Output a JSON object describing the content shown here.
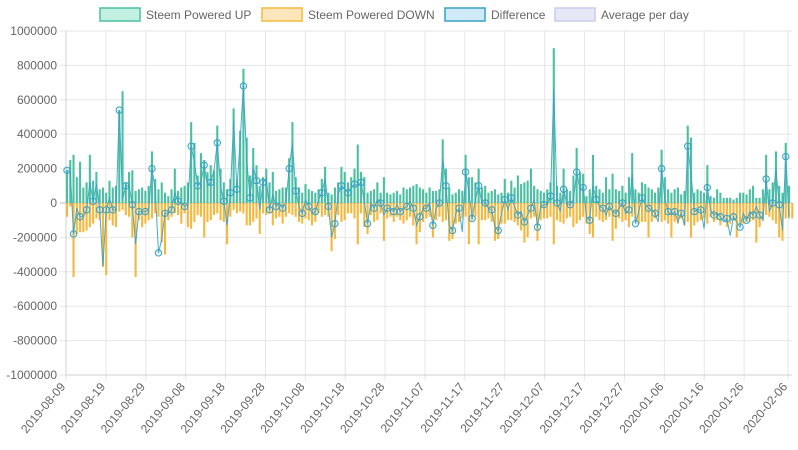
{
  "chart_data": {
    "type": "bar",
    "legend_position": "top",
    "grid": true,
    "ylim": [
      -1000000,
      1000000
    ],
    "y_ticks": [
      1000000,
      800000,
      600000,
      400000,
      200000,
      0,
      -200000,
      -400000,
      -600000,
      -800000,
      -1000000
    ],
    "x_range": [
      "2019-08-09",
      "2020-02-07"
    ],
    "x_ticks": [
      "2019-08-09",
      "2019-08-19",
      "2019-08-29",
      "2019-09-08",
      "2019-09-18",
      "2019-09-28",
      "2019-10-08",
      "2019-10-18",
      "2019-10-28",
      "2019-11-07",
      "2019-11-17",
      "2019-11-27",
      "2019-12-07",
      "2019-12-17",
      "2019-12-27",
      "2020-01-06",
      "2020-01-16",
      "2020-01-26",
      "2020-02-06"
    ],
    "series": [
      {
        "name": "Steem Powered UP",
        "kind": "bar",
        "color": "#4bc0a0",
        "fill": "#c4f0e2",
        "values": [
          190000,
          250000,
          280000,
          150000,
          240000,
          90000,
          120000,
          280000,
          130000,
          180000,
          80000,
          90000,
          60000,
          130000,
          90000,
          100000,
          540000,
          650000,
          120000,
          180000,
          190000,
          70000,
          80000,
          90000,
          70000,
          100000,
          300000,
          140000,
          80000,
          120000,
          60000,
          40000,
          80000,
          200000,
          70000,
          90000,
          100000,
          120000,
          470000,
          350000,
          160000,
          290000,
          250000,
          180000,
          220000,
          190000,
          450000,
          200000,
          120000,
          80000,
          140000,
          550000,
          120000,
          420000,
          780000,
          380000,
          160000,
          320000,
          220000,
          100000,
          150000,
          200000,
          120000,
          180000,
          70000,
          80000,
          90000,
          90000,
          260000,
          470000,
          150000,
          90000,
          60000,
          110000,
          80000,
          70000,
          60000,
          80000,
          140000,
          210000,
          60000,
          50000,
          90000,
          120000,
          210000,
          180000,
          120000,
          150000,
          200000,
          340000,
          180000,
          150000,
          60000,
          70000,
          80000,
          120000,
          60000,
          150000,
          60000,
          50000,
          60000,
          70000,
          50000,
          90000,
          80000,
          90000,
          100000,
          110000,
          90000,
          80000,
          60000,
          90000,
          70000,
          70000,
          80000,
          370000,
          200000,
          90000,
          50000,
          60000,
          80000,
          70000,
          280000,
          150000,
          150000,
          120000,
          200000,
          90000,
          100000,
          60000,
          70000,
          80000,
          50000,
          60000,
          140000,
          60000,
          130000,
          90000,
          160000,
          110000,
          120000,
          130000,
          200000,
          100000,
          80000,
          70000,
          60000,
          80000,
          120000,
          900000,
          100000,
          60000,
          200000,
          80000,
          70000,
          160000,
          320000,
          180000,
          170000,
          40000,
          80000,
          280000,
          100000,
          80000,
          60000,
          150000,
          80000,
          170000,
          80000,
          70000,
          100000,
          60000,
          150000,
          290000,
          80000,
          60000,
          120000,
          110000,
          90000,
          80000,
          60000,
          90000,
          310000,
          150000,
          80000,
          60000,
          80000,
          90000,
          50000,
          70000,
          450000,
          380000,
          60000,
          80000,
          70000,
          60000,
          220000,
          40000,
          30000,
          80000,
          60000,
          30000,
          30000,
          30000,
          20000,
          30000,
          60000,
          60000,
          50000,
          80000,
          100000,
          30000,
          30000,
          80000,
          280000,
          80000,
          120000,
          300000,
          100000,
          60000,
          350000,
          100000
        ]
      },
      {
        "name": "Steem Powered DOWN",
        "kind": "bar",
        "color": "#f6b83c",
        "fill": "#fde6bb",
        "values": [
          -80000,
          -20000,
          -430000,
          -180000,
          -170000,
          -170000,
          -160000,
          -140000,
          -120000,
          -90000,
          -100000,
          -370000,
          -420000,
          -100000,
          -130000,
          -140000,
          -50000,
          -40000,
          -70000,
          -80000,
          -200000,
          -430000,
          -100000,
          -140000,
          -120000,
          -100000,
          -90000,
          -60000,
          -80000,
          -230000,
          -300000,
          -100000,
          -80000,
          -60000,
          -70000,
          -120000,
          -60000,
          -140000,
          -150000,
          -110000,
          -70000,
          -80000,
          -200000,
          -110000,
          -100000,
          -70000,
          -60000,
          -100000,
          -110000,
          -240000,
          -80000,
          -40000,
          -60000,
          -50000,
          -60000,
          -130000,
          -130000,
          -110000,
          -90000,
          -180000,
          -60000,
          -70000,
          -60000,
          -130000,
          -90000,
          -80000,
          -120000,
          -80000,
          -60000,
          -70000,
          -80000,
          -110000,
          -120000,
          -90000,
          -100000,
          -130000,
          -110000,
          -60000,
          -80000,
          -70000,
          -80000,
          -280000,
          -210000,
          -70000,
          -110000,
          -100000,
          -60000,
          -60000,
          -90000,
          -240000,
          -60000,
          -140000,
          -180000,
          -70000,
          -110000,
          -100000,
          -60000,
          -220000,
          -90000,
          -80000,
          -110000,
          -80000,
          -100000,
          -120000,
          -100000,
          -80000,
          -130000,
          -240000,
          -170000,
          -110000,
          -90000,
          -80000,
          -200000,
          -100000,
          -80000,
          -110000,
          -100000,
          -220000,
          -210000,
          -120000,
          -110000,
          -90000,
          -80000,
          -240000,
          -100000,
          -80000,
          -240000,
          -100000,
          -100000,
          -90000,
          -110000,
          -220000,
          -210000,
          -120000,
          -120000,
          -100000,
          -100000,
          -110000,
          -130000,
          -160000,
          -230000,
          -200000,
          -90000,
          -80000,
          -220000,
          -100000,
          -90000,
          -90000,
          -80000,
          -240000,
          -100000,
          -110000,
          -120000,
          -90000,
          -80000,
          -140000,
          -120000,
          -100000,
          -80000,
          -120000,
          -180000,
          -200000,
          -80000,
          -100000,
          -110000,
          -100000,
          -80000,
          -220000,
          -150000,
          -90000,
          -110000,
          -100000,
          -140000,
          -80000,
          -100000,
          -120000,
          -110000,
          -110000,
          -200000,
          -110000,
          -90000,
          -80000,
          -110000,
          -100000,
          -120000,
          -200000,
          -110000,
          -120000,
          -90000,
          -130000,
          -110000,
          -200000,
          -130000,
          -110000,
          -100000,
          -90000,
          -120000,
          -80000,
          -110000,
          -100000,
          -130000,
          -90000,
          -140000,
          -120000,
          -100000,
          -200000,
          -120000,
          -120000,
          -110000,
          -110000,
          -100000,
          -230000,
          -140000,
          -100000,
          -70000,
          -80000,
          -100000,
          -120000,
          -200000,
          -220000,
          -90000,
          -80000,
          -90000
        ]
      },
      {
        "name": "Difference",
        "kind": "line",
        "color": "#36a2c5",
        "fill": "#d0eaf8",
        "values": [
          190000,
          180000,
          -180000,
          -30000,
          -80000,
          -80000,
          -40000,
          120000,
          10000,
          110000,
          -40000,
          -370000,
          -40000,
          30000,
          -40000,
          -40000,
          540000,
          20000,
          100000,
          100000,
          -10000,
          -240000,
          -50000,
          -50000,
          -50000,
          -40000,
          200000,
          80000,
          -290000,
          -210000,
          -60000,
          -60000,
          -40000,
          60000,
          10000,
          0,
          -20000,
          -10000,
          330000,
          240000,
          100000,
          120000,
          220000,
          100000,
          120000,
          190000,
          350000,
          100000,
          10000,
          -130000,
          60000,
          480000,
          80000,
          370000,
          680000,
          250000,
          30000,
          210000,
          130000,
          -40000,
          120000,
          140000,
          -40000,
          50000,
          -20000,
          0,
          -30000,
          10000,
          200000,
          350000,
          70000,
          -20000,
          -60000,
          20000,
          -20000,
          -60000,
          -50000,
          20000,
          60000,
          140000,
          -20000,
          -200000,
          -120000,
          50000,
          100000,
          80000,
          60000,
          90000,
          110000,
          100000,
          120000,
          10000,
          -120000,
          0,
          -30000,
          20000,
          0,
          -70000,
          -30000,
          -30000,
          -50000,
          -10000,
          -50000,
          -30000,
          -20000,
          10000,
          -30000,
          -130000,
          -80000,
          -30000,
          -30000,
          0,
          -130000,
          -30000,
          0,
          260000,
          100000,
          -130000,
          -160000,
          -60000,
          -30000,
          -170000,
          180000,
          70000,
          -90000,
          20000,
          100000,
          0,
          0,
          -30000,
          -40000,
          -140000,
          -160000,
          -60000,
          20000,
          -40000,
          30000,
          -20000,
          -70000,
          -50000,
          -110000,
          -70000,
          -30000,
          20000,
          -140000,
          -20000,
          -10000,
          -10000,
          40000,
          660000,
          0,
          -50000,
          80000,
          -10000,
          -10000,
          20000,
          180000,
          80000,
          90000,
          -80000,
          -100000,
          100000,
          20000,
          -20000,
          -30000,
          -70000,
          -20000,
          -50000,
          -60000,
          -30000,
          0,
          -60000,
          -40000,
          170000,
          -120000,
          -50000,
          30000,
          -10000,
          -30000,
          -40000,
          -60000,
          -110000,
          200000,
          20000,
          -50000,
          -70000,
          -50000,
          -110000,
          -60000,
          -130000,
          330000,
          170000,
          -50000,
          -40000,
          -40000,
          -150000,
          90000,
          -40000,
          -70000,
          -60000,
          -80000,
          -110000,
          -90000,
          -190000,
          -80000,
          -110000,
          -140000,
          -60000,
          -100000,
          -50000,
          -70000,
          -20000,
          -70000,
          -100000,
          140000,
          -50000,
          0,
          200000,
          -10000,
          -160000,
          270000,
          -90000
        ]
      },
      {
        "name": "Average per day",
        "kind": "line",
        "color": "#c8ccf0",
        "fill": "#e6e8f8",
        "values": []
      }
    ]
  }
}
